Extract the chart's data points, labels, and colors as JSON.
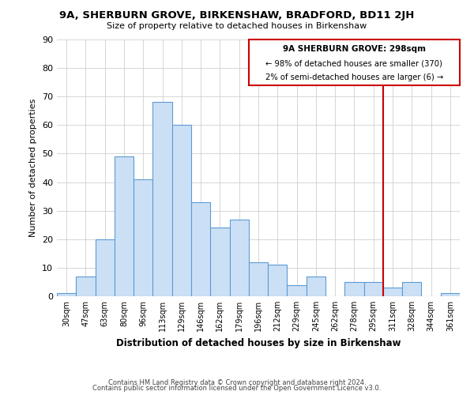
{
  "title": "9A, SHERBURN GROVE, BIRKENSHAW, BRADFORD, BD11 2JH",
  "subtitle": "Size of property relative to detached houses in Birkenshaw",
  "xlabel": "Distribution of detached houses by size in Birkenshaw",
  "ylabel": "Number of detached properties",
  "bar_labels": [
    "30sqm",
    "47sqm",
    "63sqm",
    "80sqm",
    "96sqm",
    "113sqm",
    "129sqm",
    "146sqm",
    "162sqm",
    "179sqm",
    "196sqm",
    "212sqm",
    "229sqm",
    "245sqm",
    "262sqm",
    "278sqm",
    "295sqm",
    "311sqm",
    "328sqm",
    "344sqm",
    "361sqm"
  ],
  "bar_heights": [
    1,
    7,
    20,
    49,
    41,
    68,
    60,
    33,
    24,
    27,
    12,
    11,
    4,
    7,
    0,
    5,
    5,
    3,
    5,
    0,
    1
  ],
  "bar_color": "#cce0f5",
  "bar_edge_color": "#5b9bd5",
  "vline_color": "#cc0000",
  "annotation_title": "9A SHERBURN GROVE: 298sqm",
  "annotation_line1": "← 98% of detached houses are smaller (370)",
  "annotation_line2": "2% of semi-detached houses are larger (6) →",
  "annotation_box_color": "#cc0000",
  "ylim": [
    0,
    90
  ],
  "yticks": [
    0,
    10,
    20,
    30,
    40,
    50,
    60,
    70,
    80,
    90
  ],
  "footer1": "Contains HM Land Registry data © Crown copyright and database right 2024.",
  "footer2": "Contains public sector information licensed under the Open Government Licence v3.0.",
  "bg_color": "#ffffff",
  "grid_color": "#d0d0d0"
}
